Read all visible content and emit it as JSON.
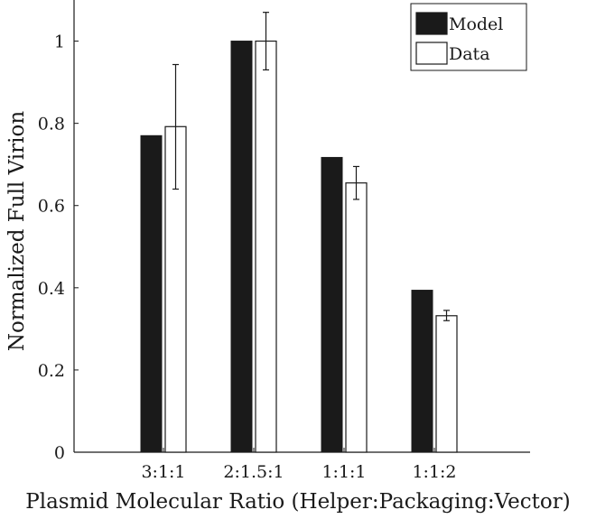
{
  "chart_data": {
    "type": "bar",
    "xlabel": "Plasmid Molecular Ratio (Helper:Packaging:Vector)",
    "ylabel": "Normalized Full Virion",
    "categories": [
      "3:1:1",
      "2:1.5:1",
      "1:1:1",
      "1:1:2"
    ],
    "ylim": [
      0,
      1.1
    ],
    "yticks": [
      0,
      0.2,
      0.4,
      0.6,
      0.8,
      1
    ],
    "ytick_labels": [
      "0",
      "0.2",
      "0.4",
      "0.6",
      "0.8",
      "1"
    ],
    "grid": false,
    "legend_position": "top-right",
    "series": [
      {
        "name": "Model",
        "values": [
          0.77,
          1.0,
          0.717,
          0.394
        ],
        "fill": "#1a1a1a"
      },
      {
        "name": "Data",
        "values": [
          0.792,
          1.0,
          0.655,
          0.332
        ],
        "fill": "#ffffff",
        "error_low": [
          0.64,
          0.93,
          0.615,
          0.32
        ],
        "error_high": [
          0.943,
          1.07,
          0.695,
          0.345
        ]
      }
    ]
  }
}
